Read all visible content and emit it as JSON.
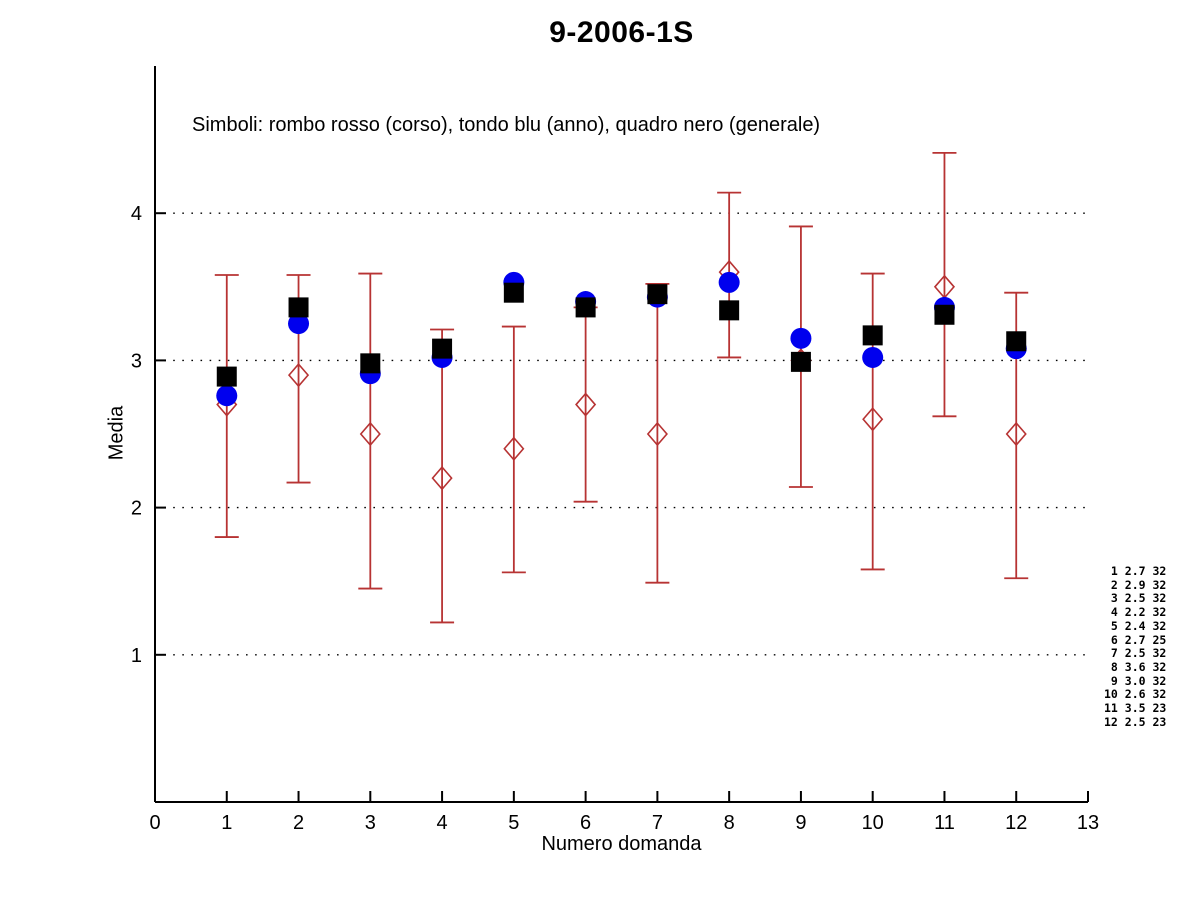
{
  "title": "9-2006-1S",
  "annotation": "Simboli: rombo rosso (corso), tondo blu (anno), quadro nero (generale)",
  "chart_data": {
    "type": "scatter",
    "title": "9-2006-1S",
    "xlabel": "Numero domanda",
    "ylabel": "Media",
    "xlim": [
      0,
      13
    ],
    "ylim": [
      0,
      5
    ],
    "x_ticks": [
      0,
      1,
      2,
      3,
      4,
      5,
      6,
      7,
      8,
      9,
      10,
      11,
      12,
      13
    ],
    "y_ticks": [
      1,
      2,
      3,
      4
    ],
    "grid": "horizontal black dotted lines at each y tick",
    "legend_note": "Simboli: rombo rosso (corso), tondo blu (anno), quadro nero (generale)",
    "colors": {
      "corso": "#b73333",
      "anno": "#0000ee",
      "generale": "#000000",
      "axis": "#000000"
    },
    "x": [
      1,
      2,
      3,
      4,
      5,
      6,
      7,
      8,
      9,
      10,
      11,
      12
    ],
    "series": [
      {
        "name": "corso",
        "marker": "diamond-open-red",
        "color": "#b73333",
        "values": [
          2.7,
          2.9,
          2.5,
          2.2,
          2.4,
          2.7,
          2.5,
          3.6,
          3.0,
          2.6,
          3.5,
          2.5
        ],
        "err_lo": [
          1.8,
          2.17,
          1.45,
          1.22,
          1.56,
          2.04,
          1.49,
          3.02,
          2.14,
          1.58,
          2.62,
          1.52
        ],
        "err_hi": [
          3.58,
          3.58,
          3.59,
          3.21,
          3.23,
          3.36,
          3.52,
          4.14,
          3.91,
          3.59,
          4.41,
          3.46
        ]
      },
      {
        "name": "anno",
        "marker": "circle-filled-blue",
        "color": "#0000ee",
        "values": [
          2.76,
          3.25,
          2.91,
          3.02,
          3.53,
          3.4,
          3.43,
          3.53,
          3.15,
          3.02,
          3.36,
          3.08
        ]
      },
      {
        "name": "generale",
        "marker": "square-filled-black",
        "color": "#000000",
        "values": [
          2.89,
          3.36,
          2.98,
          3.08,
          3.46,
          3.36,
          3.45,
          3.34,
          2.99,
          3.17,
          3.31,
          3.13
        ]
      }
    ],
    "side_table": {
      "rows": [
        [
          "1",
          "2.7",
          "32"
        ],
        [
          "2",
          "2.9",
          "32"
        ],
        [
          "3",
          "2.5",
          "32"
        ],
        [
          "4",
          "2.2",
          "32"
        ],
        [
          "5",
          "2.4",
          "32"
        ],
        [
          "6",
          "2.7",
          "25"
        ],
        [
          "7",
          "2.5",
          "32"
        ],
        [
          "8",
          "3.6",
          "32"
        ],
        [
          "9",
          "3.0",
          "32"
        ],
        [
          "10",
          "2.6",
          "32"
        ],
        [
          "11",
          "3.5",
          "23"
        ],
        [
          "12",
          "2.5",
          "23"
        ]
      ]
    }
  }
}
